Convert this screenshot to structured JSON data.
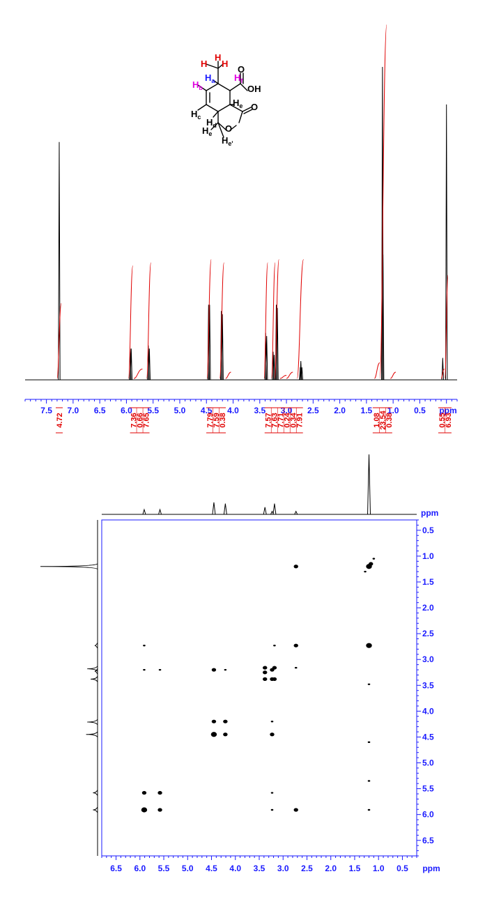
{
  "molecule": {
    "labels": [
      {
        "id": "H-top-left",
        "text": "H",
        "sub": "",
        "color": "#e00000"
      },
      {
        "id": "H-top",
        "text": "H",
        "sub": "",
        "color": "#e00000"
      },
      {
        "id": "H-top-right",
        "text": "H",
        "sub": "",
        "color": "#e00000"
      },
      {
        "id": "Ha",
        "text": "H",
        "sub": "a",
        "color": "#1a1aff"
      },
      {
        "id": "Hf",
        "text": "H",
        "sub": "f",
        "color": "#e000e0"
      },
      {
        "id": "Hb",
        "text": "H",
        "sub": "b",
        "color": "#e000e0"
      },
      {
        "id": "Hc",
        "text": "H",
        "sub": "c",
        "color": "#000000"
      },
      {
        "id": "Hd",
        "text": "H",
        "sub": "d",
        "color": "#000000"
      },
      {
        "id": "He1",
        "text": "H",
        "sub": "e",
        "color": "#000000"
      },
      {
        "id": "He2",
        "text": "H",
        "sub": "e",
        "color": "#000000"
      },
      {
        "id": "He3",
        "text": "H",
        "sub": "e'",
        "color": "#000000"
      },
      {
        "id": "O-acid",
        "text": "O",
        "sub": "",
        "color": "#000000"
      },
      {
        "id": "OH",
        "text": "OH",
        "sub": "",
        "color": "#000000"
      },
      {
        "id": "O-lactone-carbonyl",
        "text": "O",
        "sub": "",
        "color": "#000000"
      },
      {
        "id": "O-ring",
        "text": "O",
        "sub": "",
        "color": "#000000"
      }
    ]
  },
  "colors": {
    "spectrum": "#000000",
    "integral": "#e00000",
    "axis": "#1a1aff",
    "text_axis": "#1a1aff"
  },
  "chart_data": [
    {
      "type": "line",
      "title": "",
      "xlabel": "ppm",
      "x_reversed": true,
      "xlim": [
        7.9,
        -0.2
      ],
      "x_ticks": [
        7.5,
        7.0,
        6.5,
        6.0,
        5.5,
        5.0,
        4.5,
        4.0,
        3.5,
        3.0,
        2.5,
        2.0,
        1.5,
        1.0,
        0.5
      ],
      "x_tick_labels": [
        "7.5",
        "7.0",
        "6.5",
        "6.0",
        "5.5",
        "5.0",
        "4.5",
        "4.0",
        "3.5",
        "3.0",
        "2.5",
        "2.0",
        "1.5",
        "1.0",
        "0.5"
      ],
      "peaks": [
        {
          "ppm": 7.26,
          "height": 0.76
        },
        {
          "ppm": 5.93,
          "height": 0.1
        },
        {
          "ppm": 5.91,
          "height": 0.1
        },
        {
          "ppm": 5.59,
          "height": 0.11
        },
        {
          "ppm": 5.57,
          "height": 0.1
        },
        {
          "ppm": 4.46,
          "height": 0.24
        },
        {
          "ppm": 4.44,
          "height": 0.24
        },
        {
          "ppm": 4.22,
          "height": 0.22
        },
        {
          "ppm": 4.2,
          "height": 0.21
        },
        {
          "ppm": 3.39,
          "height": 0.15
        },
        {
          "ppm": 3.37,
          "height": 0.14
        },
        {
          "ppm": 3.25,
          "height": 0.09
        },
        {
          "ppm": 3.23,
          "height": 0.08
        },
        {
          "ppm": 3.19,
          "height": 0.24
        },
        {
          "ppm": 3.17,
          "height": 0.23
        },
        {
          "ppm": 2.74,
          "height": 0.04
        },
        {
          "ppm": 2.73,
          "height": 0.06
        },
        {
          "ppm": 2.71,
          "height": 0.04
        },
        {
          "ppm": 1.2,
          "height": 1.0
        },
        {
          "ppm": 1.19,
          "height": 0.4
        },
        {
          "ppm": 0.07,
          "height": 0.07
        },
        {
          "ppm": 0.0,
          "height": 0.88
        }
      ],
      "integrals": [
        {
          "from": 7.3,
          "to": 7.22,
          "rise": 0.24
        },
        {
          "from": 5.96,
          "to": 5.88,
          "rise": 0.36
        },
        {
          "from": 5.86,
          "to": 5.7,
          "rise": 0.03
        },
        {
          "from": 5.62,
          "to": 5.54,
          "rise": 0.37
        },
        {
          "from": 4.49,
          "to": 4.41,
          "rise": 0.38
        },
        {
          "from": 4.25,
          "to": 4.17,
          "rise": 0.37
        },
        {
          "from": 4.14,
          "to": 4.04,
          "rise": 0.02
        },
        {
          "from": 3.42,
          "to": 3.35,
          "rise": 0.37
        },
        {
          "from": 3.28,
          "to": 3.21,
          "rise": 0.37
        },
        {
          "from": 3.22,
          "to": 3.14,
          "rise": 0.38
        },
        {
          "from": 3.12,
          "to": 3.0,
          "rise": 0.01
        },
        {
          "from": 3.0,
          "to": 2.88,
          "rise": 0.02
        },
        {
          "from": 2.8,
          "to": 2.68,
          "rise": 0.38
        },
        {
          "from": 1.35,
          "to": 1.25,
          "rise": 0.05
        },
        {
          "from": 1.25,
          "to": 1.12,
          "rise": 1.13
        },
        {
          "from": 1.05,
          "to": 0.95,
          "rise": 0.02
        },
        {
          "from": 0.1,
          "to": 0.04,
          "rise": 0.03
        },
        {
          "from": 0.03,
          "to": -0.03,
          "rise": 0.33
        }
      ],
      "integral_label_groups": [
        {
          "ppm": 7.26,
          "labels": [
            "4.72"
          ]
        },
        {
          "ppm": 5.75,
          "labels": [
            "7.36",
            "0.66",
            "7.65"
          ]
        },
        {
          "ppm": 4.32,
          "labels": [
            "7.79",
            "7.59",
            "0.38"
          ]
        },
        {
          "ppm": 3.05,
          "labels": [
            "7.57",
            "7.63",
            "7.71",
            "0.24",
            "0.34",
            "7.91"
          ]
        },
        {
          "ppm": 1.2,
          "labels": [
            "1.08",
            "23.54",
            "0.38"
          ]
        },
        {
          "ppm": 0.03,
          "labels": [
            "0.55",
            "6.93"
          ]
        }
      ]
    },
    {
      "type": "scatter",
      "title": "",
      "subtype": "2D COSY contour",
      "xlabel": "ppm",
      "ylabel": "ppm",
      "x_reversed": true,
      "xlim": [
        6.8,
        0.2
      ],
      "ylim": [
        0.3,
        6.8
      ],
      "x_ticks": [
        6.5,
        6.0,
        5.5,
        5.0,
        4.5,
        4.0,
        3.5,
        3.0,
        2.5,
        2.0,
        1.5,
        1.0,
        0.5
      ],
      "x_tick_labels": [
        "6.5",
        "6.0",
        "5.5",
        "5.0",
        "4.5",
        "4.0",
        "3.5",
        "3.0",
        "2.5",
        "2.0",
        "1.5",
        "1.0",
        "0.5"
      ],
      "y_ticks": [
        0.5,
        1.0,
        1.5,
        2.0,
        2.5,
        3.0,
        3.5,
        4.0,
        4.5,
        5.0,
        5.5,
        6.0,
        6.5
      ],
      "y_tick_labels": [
        "0.5",
        "1.0",
        "1.5",
        "2.0",
        "2.5",
        "3.0",
        "3.5",
        "4.0",
        "4.5",
        "5.0",
        "5.5",
        "6.0",
        "6.5"
      ],
      "projection_peaks": [
        {
          "ppm": 5.91,
          "height": 0.08
        },
        {
          "ppm": 5.58,
          "height": 0.08
        },
        {
          "ppm": 4.45,
          "height": 0.2
        },
        {
          "ppm": 4.21,
          "height": 0.18
        },
        {
          "ppm": 3.38,
          "height": 0.12
        },
        {
          "ppm": 3.23,
          "height": 0.05
        },
        {
          "ppm": 3.18,
          "height": 0.18
        },
        {
          "ppm": 2.73,
          "height": 0.05
        },
        {
          "ppm": 1.2,
          "height": 1.0
        }
      ],
      "cross_peaks": [
        {
          "x": 2.73,
          "y": 1.2,
          "size": 2
        },
        {
          "x": 1.2,
          "y": 1.2,
          "size": 3
        },
        {
          "x": 1.16,
          "y": 1.15,
          "size": 2
        },
        {
          "x": 1.28,
          "y": 1.3,
          "size": 1
        },
        {
          "x": 1.1,
          "y": 1.05,
          "size": 1
        },
        {
          "x": 5.91,
          "y": 2.73,
          "size": 1
        },
        {
          "x": 3.18,
          "y": 2.73,
          "size": 1
        },
        {
          "x": 2.73,
          "y": 2.73,
          "size": 2
        },
        {
          "x": 1.2,
          "y": 2.73,
          "size": 3
        },
        {
          "x": 5.91,
          "y": 3.2,
          "size": 1
        },
        {
          "x": 5.58,
          "y": 3.2,
          "size": 1
        },
        {
          "x": 4.45,
          "y": 3.2,
          "size": 2
        },
        {
          "x": 4.21,
          "y": 3.2,
          "size": 1
        },
        {
          "x": 3.38,
          "y": 3.16,
          "size": 2
        },
        {
          "x": 3.38,
          "y": 3.25,
          "size": 2
        },
        {
          "x": 3.23,
          "y": 3.2,
          "size": 2
        },
        {
          "x": 3.18,
          "y": 3.16,
          "size": 2
        },
        {
          "x": 2.73,
          "y": 3.16,
          "size": 1
        },
        {
          "x": 3.38,
          "y": 3.38,
          "size": 2
        },
        {
          "x": 3.23,
          "y": 3.38,
          "size": 2
        },
        {
          "x": 3.18,
          "y": 3.38,
          "size": 2
        },
        {
          "x": 1.2,
          "y": 3.48,
          "size": 1
        },
        {
          "x": 4.45,
          "y": 4.2,
          "size": 2
        },
        {
          "x": 4.21,
          "y": 4.2,
          "size": 2
        },
        {
          "x": 3.23,
          "y": 4.2,
          "size": 1
        },
        {
          "x": 4.45,
          "y": 4.45,
          "size": 3
        },
        {
          "x": 4.21,
          "y": 4.45,
          "size": 2
        },
        {
          "x": 3.23,
          "y": 4.45,
          "size": 2
        },
        {
          "x": 1.2,
          "y": 4.6,
          "size": 1
        },
        {
          "x": 1.2,
          "y": 5.35,
          "size": 1
        },
        {
          "x": 5.91,
          "y": 5.58,
          "size": 2
        },
        {
          "x": 5.58,
          "y": 5.58,
          "size": 2
        },
        {
          "x": 3.23,
          "y": 5.58,
          "size": 1
        },
        {
          "x": 5.91,
          "y": 5.91,
          "size": 3
        },
        {
          "x": 5.58,
          "y": 5.91,
          "size": 2
        },
        {
          "x": 3.23,
          "y": 5.91,
          "size": 1
        },
        {
          "x": 2.73,
          "y": 5.91,
          "size": 2
        },
        {
          "x": 1.2,
          "y": 5.91,
          "size": 1
        }
      ]
    }
  ]
}
